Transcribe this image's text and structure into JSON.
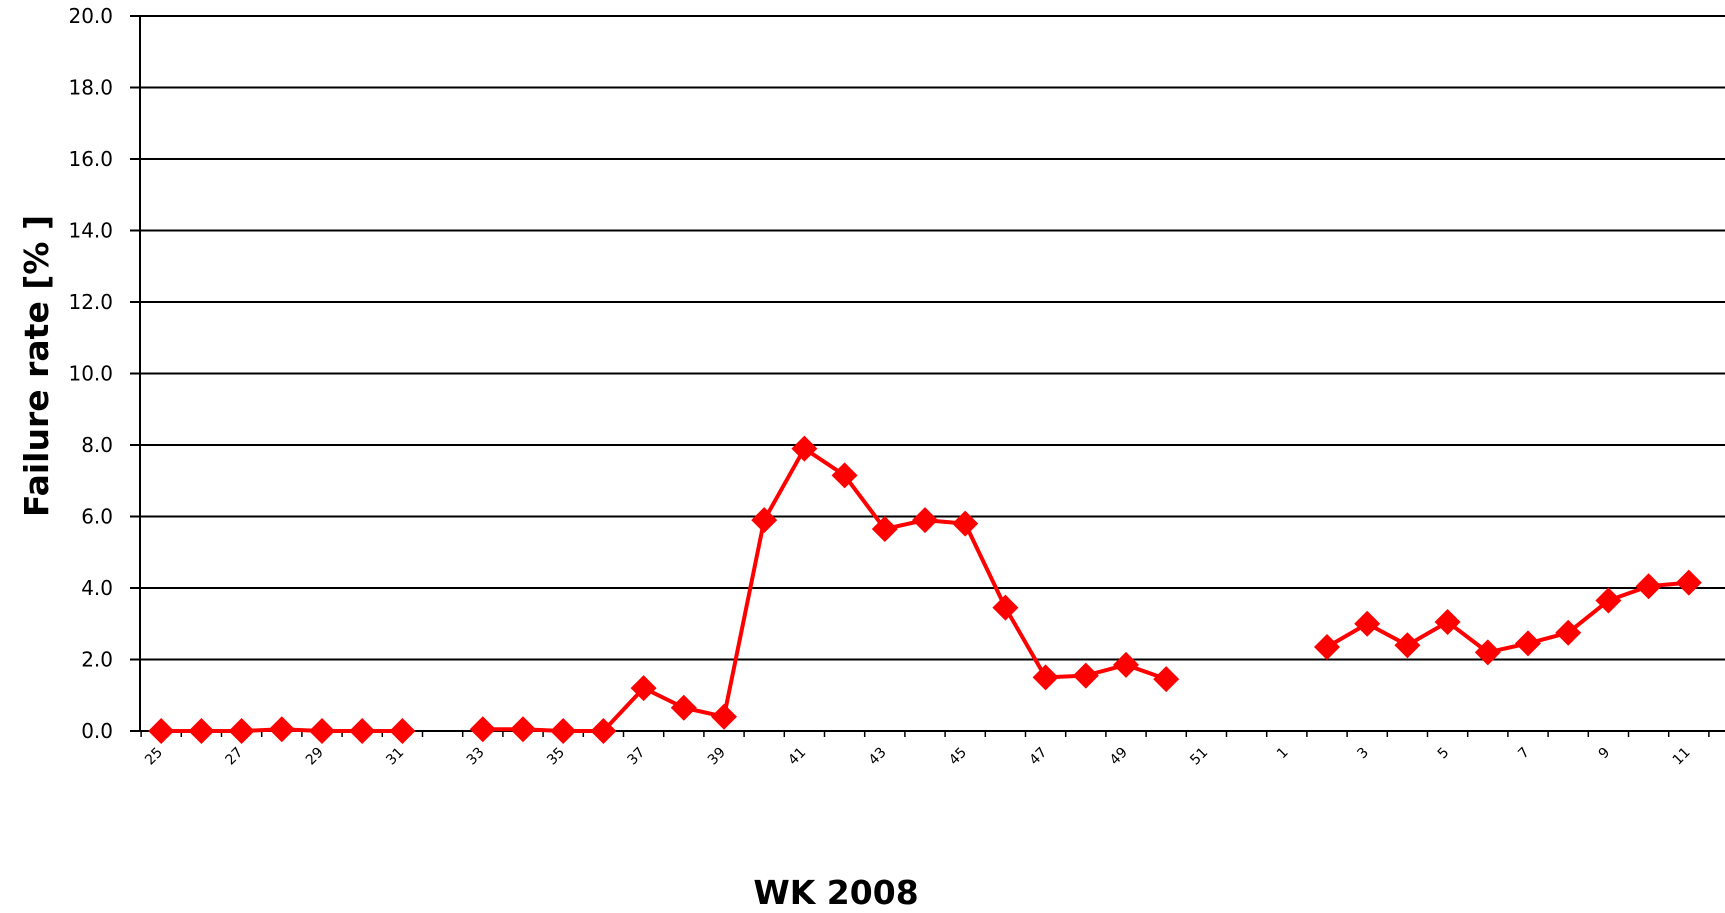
{
  "chart_data": {
    "type": "line",
    "title": "",
    "xlabel": "WK 2008",
    "ylabel": "Failure rate [%  ]",
    "ylim": [
      0,
      20
    ],
    "yticks": [
      "0.0",
      "2.0",
      "4.0",
      "6.0",
      "8.0",
      "10.0",
      "12.0",
      "14.0",
      "16.0",
      "18.0",
      "20.0"
    ],
    "grid": "horizontal",
    "legend": "none",
    "categories": [
      25,
      26,
      27,
      28,
      29,
      30,
      31,
      32,
      33,
      34,
      35,
      36,
      37,
      38,
      39,
      40,
      41,
      42,
      43,
      44,
      45,
      46,
      47,
      48,
      49,
      50,
      51,
      52,
      1,
      2,
      3,
      4,
      5,
      6,
      7,
      8,
      9,
      10,
      11,
      12
    ],
    "tick_labels": [
      "25",
      "27",
      "29",
      "31",
      "33",
      "35",
      "37",
      "39",
      "41",
      "43",
      "45",
      "47",
      "49",
      "51",
      "1",
      "3",
      "5",
      "7",
      "9",
      "11"
    ],
    "series": [
      {
        "color": "#ff0000",
        "values": [
          0.0,
          0.0,
          0.0,
          0.05,
          0.0,
          0.0,
          0.0,
          null,
          0.05,
          0.05,
          0.0,
          0.0,
          1.2,
          0.65,
          0.4,
          5.9,
          7.9,
          7.15,
          5.65,
          5.9,
          5.8,
          3.45,
          1.5,
          1.55,
          1.85,
          1.45,
          null,
          null,
          null,
          2.35,
          3.0,
          2.4,
          3.05,
          2.2,
          2.45,
          2.75,
          3.65,
          4.05,
          4.15,
          null
        ]
      }
    ]
  }
}
